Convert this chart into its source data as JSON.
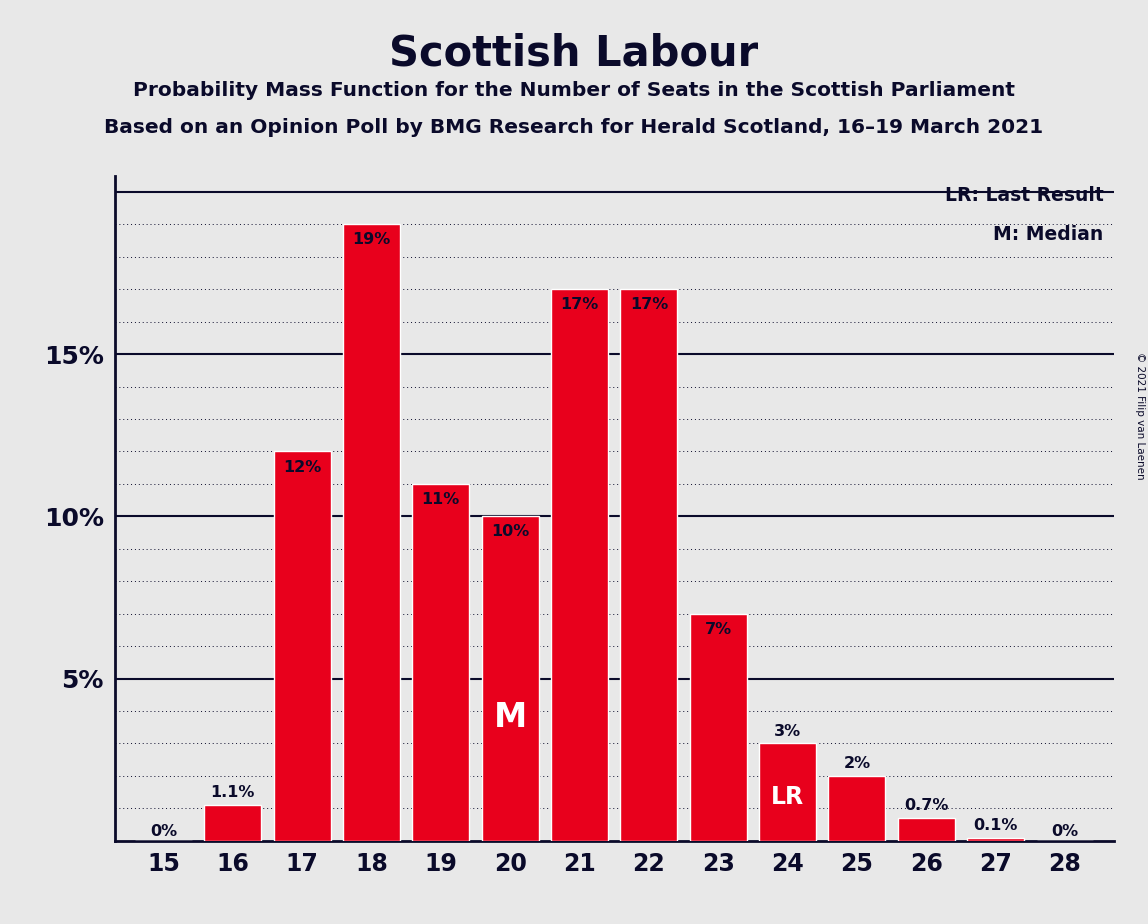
{
  "title": "Scottish Labour",
  "subtitle1": "Probability Mass Function for the Number of Seats in the Scottish Parliament",
  "subtitle2": "Based on an Opinion Poll by BMG Research for Herald Scotland, 16–19 March 2021",
  "copyright": "© 2021 Filip van Laenen",
  "seats": [
    15,
    16,
    17,
    18,
    19,
    20,
    21,
    22,
    23,
    24,
    25,
    26,
    27,
    28
  ],
  "probabilities": [
    0.0,
    1.1,
    12.0,
    19.0,
    11.0,
    10.0,
    17.0,
    17.0,
    7.0,
    3.0,
    2.0,
    0.7,
    0.1,
    0.0
  ],
  "bar_color": "#e8001c",
  "bar_edge_color": "#ffffff",
  "background_color": "#e8e8e8",
  "axis_color": "#0a0a2a",
  "median_seat": 20,
  "last_result_seat": 24,
  "yticks": [
    5,
    10,
    15
  ],
  "ytick_labels": [
    "5%",
    "10%",
    "15%"
  ],
  "legend_lr": "LR: Last Result",
  "legend_m": "M: Median",
  "bar_labels": [
    "0%",
    "1.1%",
    "12%",
    "19%",
    "11%",
    "10%",
    "17%",
    "17%",
    "7%",
    "3%",
    "2%",
    "0.7%",
    "0.1%",
    "0%"
  ],
  "ylim": [
    0,
    20.5
  ]
}
